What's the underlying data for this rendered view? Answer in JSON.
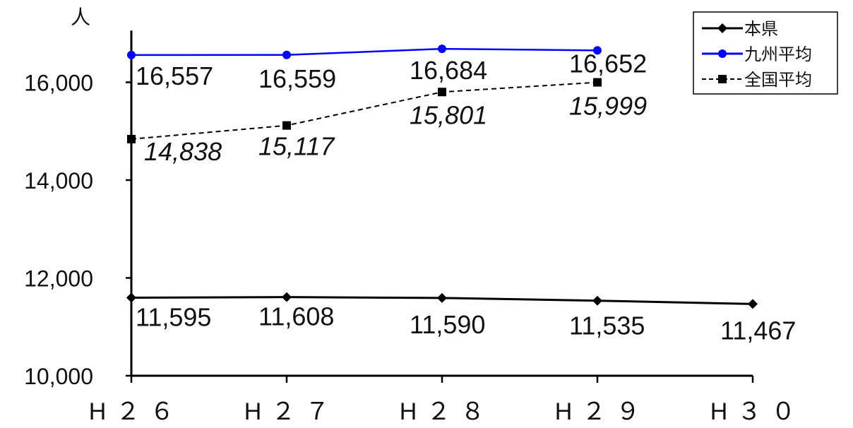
{
  "chart_data": {
    "type": "line",
    "title": "",
    "ylabel": "人",
    "xlabel": "",
    "categories": [
      "H２６",
      "H２７",
      "H２８",
      "H２９",
      "H３０"
    ],
    "ylim": [
      10000,
      17000
    ],
    "yticks": [
      10000,
      12000,
      14000,
      16000
    ],
    "ytick_labels": [
      "10,000",
      "12,000",
      "14,000",
      "16,000"
    ],
    "grid": false,
    "legend_position": "top-right",
    "series": [
      {
        "name": "本県",
        "values": [
          11595,
          11608,
          11590,
          11535,
          11467
        ],
        "labels": [
          "11,595",
          "11,608",
          "11,590",
          "11,535",
          "11,467"
        ],
        "color": "#000000",
        "marker": "diamond",
        "dash": "solid"
      },
      {
        "name": "九州平均",
        "values": [
          16557,
          16559,
          16684,
          16652,
          null
        ],
        "labels": [
          "16,557",
          "16,559",
          "16,684",
          "16,652",
          null
        ],
        "color": "#0000ff",
        "marker": "circle",
        "dash": "solid"
      },
      {
        "name": "全国平均",
        "values": [
          14838,
          15117,
          15801,
          15999,
          null
        ],
        "labels": [
          "14,838",
          "15,117",
          "15,801",
          "15,999",
          null
        ],
        "color": "#000000",
        "marker": "square",
        "dash": "dashed"
      }
    ]
  }
}
